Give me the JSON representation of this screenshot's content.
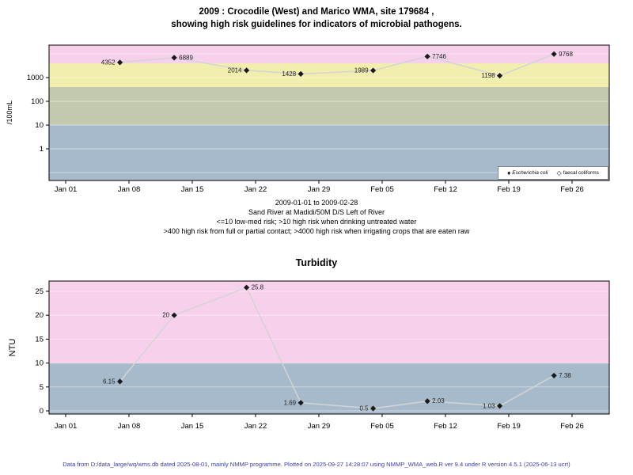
{
  "header": {
    "title_line1": "2009 : Crocodile (West) and Marico WMA, site 179684 ,",
    "title_line2": "showing high risk guidelines for indicators of microbial pathogens."
  },
  "caption": {
    "line1": "2009-01-01 to 2009-02-28",
    "line2": "Sand River at Madidi/50M D/S Left of River",
    "line3": "<=10 low-med risk; >10 high risk when drinking untreated water",
    "line4": ">400 high risk from full or partial contact; >4000 high risk when irrigating crops that are eaten raw"
  },
  "footer": "Data from D:/data_large/wq/wms.db dated 2025-08-01, mainly NMMP programme. Plotted on 2025-09-27 14:28:07 using NMMP_WMA_web.R ver 9.4 under R version 4.5.1 (2025-06-13 ucrt)",
  "colors": {
    "band_pink": "#f7d0ec",
    "band_yellow": "#f2efae",
    "band_green": "#c2c9ae",
    "band_blue": "#a7bacc",
    "series_line": "#d4d4d4",
    "marker": "#1a1a1a",
    "footer_text": "#3b3bb2"
  },
  "chart_data": [
    {
      "type": "line",
      "title": "2009 : Crocodile (West) and Marico WMA, site 179684 , showing high risk guidelines for indicators of microbial pathogens.",
      "ylabel": "/100mL",
      "yscale": "log",
      "ylim": [
        0.05,
        23000
      ],
      "ytick_values": [
        1,
        10,
        100,
        1000
      ],
      "x_tick_labels": [
        "Jan 01",
        "Jan 08",
        "Jan 15",
        "Jan 22",
        "Jan 29",
        "Feb 05",
        "Feb 12",
        "Feb 19",
        "Feb 26"
      ],
      "x_tick_days": [
        0,
        7,
        14,
        21,
        28,
        35,
        42,
        49,
        56
      ],
      "guideline_bands": [
        {
          "from": null,
          "to": 10,
          "color_key": "band_blue",
          "meaning": "<=10 low-med risk"
        },
        {
          "from": 10,
          "to": 400,
          "color_key": "band_green",
          "meaning": ">10 high risk when drinking untreated water"
        },
        {
          "from": 400,
          "to": 4000,
          "color_key": "band_yellow",
          "meaning": ">400 high risk from full or partial contact"
        },
        {
          "from": 4000,
          "to": null,
          "color_key": "band_pink",
          "meaning": ">4000 high risk when irrigating crops that are eaten raw"
        }
      ],
      "series": [
        {
          "name": "Escherichia coli",
          "marker": "filled-diamond",
          "points": [
            {
              "day": 6,
              "value": 4352,
              "label": "4352",
              "label_side": "left"
            },
            {
              "day": 12,
              "value": 6889,
              "label": "6889",
              "label_side": "right"
            },
            {
              "day": 20,
              "value": 2014,
              "label": "2014",
              "label_side": "left"
            },
            {
              "day": 26,
              "value": 1428,
              "label": "1428",
              "label_side": "left"
            },
            {
              "day": 34,
              "value": 1989,
              "label": "1989",
              "label_side": "left"
            },
            {
              "day": 40,
              "value": 7746,
              "label": "7746",
              "label_side": "right"
            },
            {
              "day": 48,
              "value": 1198,
              "label": "1198",
              "label_side": "left"
            },
            {
              "day": 54,
              "value": 9768,
              "label": "9768",
              "label_side": "right"
            }
          ]
        }
      ],
      "legend": [
        {
          "label": "Escherichia coli",
          "marker": "filled-diamond"
        },
        {
          "label": "faecal coliforms",
          "marker": "open-diamond"
        }
      ]
    },
    {
      "type": "line",
      "title": "Turbidity",
      "ylabel": "NTU",
      "yscale": "linear",
      "ylim": [
        -0.7,
        27.2
      ],
      "ytick_values": [
        0,
        5,
        10,
        15,
        20,
        25
      ],
      "x_tick_labels": [
        "Jan 01",
        "Jan 08",
        "Jan 15",
        "Jan 22",
        "Jan 29",
        "Feb 05",
        "Feb 12",
        "Feb 19",
        "Feb 26"
      ],
      "x_tick_days": [
        0,
        7,
        14,
        21,
        28,
        35,
        42,
        49,
        56
      ],
      "guideline_bands": [
        {
          "from": null,
          "to": 10,
          "color_key": "band_blue"
        },
        {
          "from": 10,
          "to": null,
          "color_key": "band_pink"
        }
      ],
      "series": [
        {
          "name": "Turbidity",
          "marker": "filled-diamond",
          "points": [
            {
              "day": 6,
              "value": 6.15,
              "label": "6.15",
              "label_side": "left"
            },
            {
              "day": 12,
              "value": 20,
              "label": "20",
              "label_side": "left"
            },
            {
              "day": 20,
              "value": 25.8,
              "label": "25.8",
              "label_side": "right"
            },
            {
              "day": 26,
              "value": 1.69,
              "label": "1.69",
              "label_side": "left"
            },
            {
              "day": 34,
              "value": 0.5,
              "label": "0.5",
              "label_side": "left"
            },
            {
              "day": 40,
              "value": 2.03,
              "label": "2.03",
              "label_side": "right"
            },
            {
              "day": 48,
              "value": 1.03,
              "label": "1.03",
              "label_side": "left"
            },
            {
              "day": 54,
              "value": 7.38,
              "label": "7.38",
              "label_side": "right"
            }
          ]
        }
      ]
    }
  ]
}
